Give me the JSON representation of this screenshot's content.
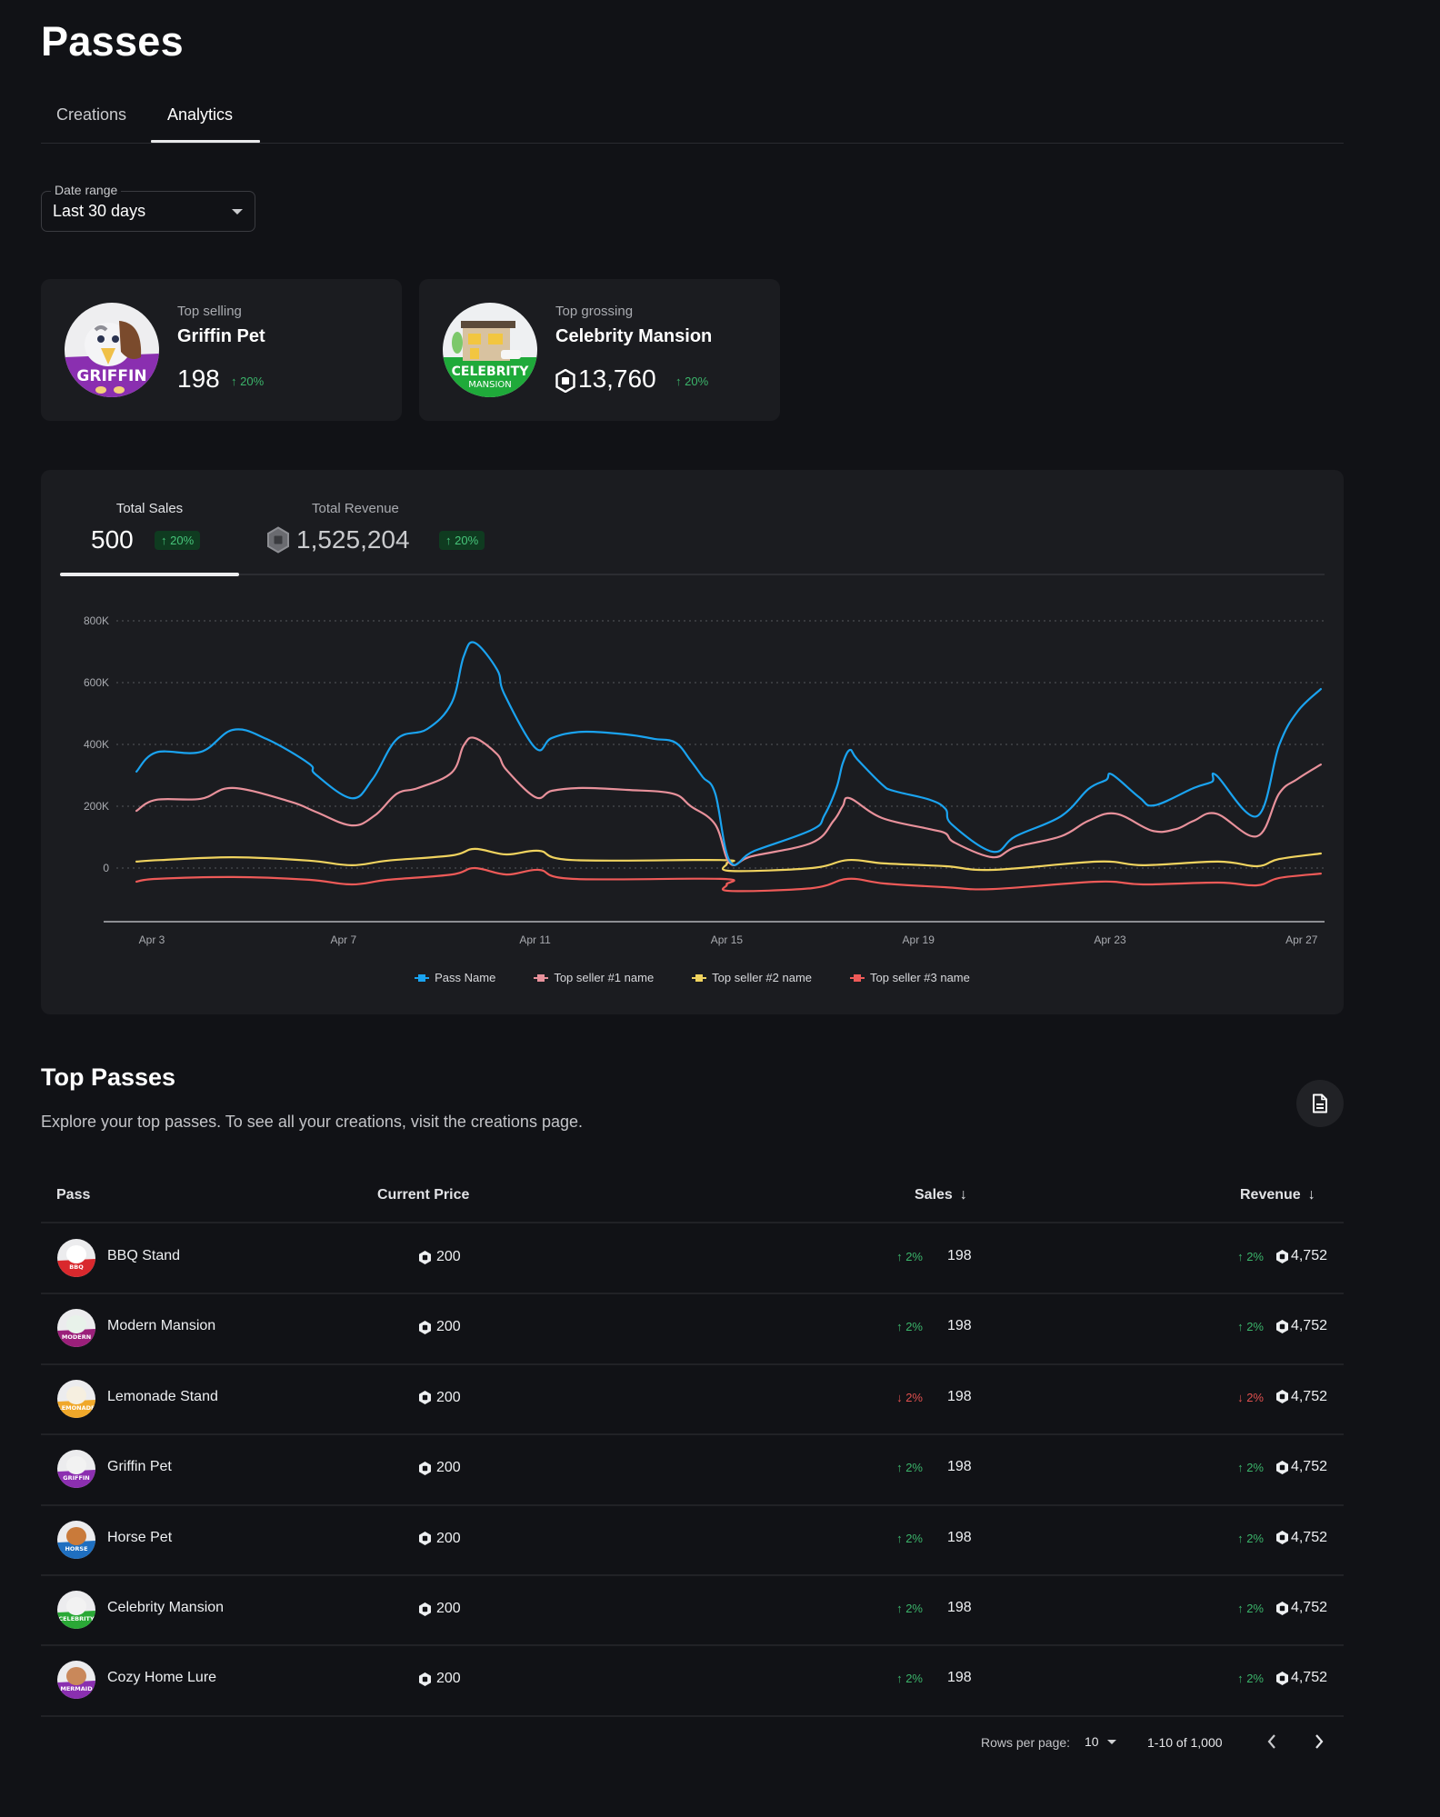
{
  "page": {
    "title": "Passes",
    "tabs": [
      {
        "label": "Creations",
        "active": false
      },
      {
        "label": "Analytics",
        "active": true
      }
    ]
  },
  "filters": {
    "date_range_label": "Date range",
    "date_range_value": "Last 30 days"
  },
  "highlights": {
    "top_selling": {
      "label": "Top selling",
      "name": "Griffin Pet",
      "value": "198",
      "delta": "20%",
      "thumb_text": "GRIFFIN"
    },
    "top_grossing": {
      "label": "Top grossing",
      "name": "Celebrity Mansion",
      "value": "13,760",
      "delta": "20%",
      "thumb_text_1": "CELEBRITY",
      "thumb_text_2": "MANSION"
    }
  },
  "metrics": {
    "total_sales": {
      "label": "Total Sales",
      "value": "500",
      "delta": "20%"
    },
    "total_revenue": {
      "label": "Total Revenue",
      "value": "1,525,204",
      "delta": "20%"
    }
  },
  "colors": {
    "pass_name": "#1aa3f0",
    "top1": "#e8919b",
    "top2": "#f0d35f",
    "top3": "#ee5a58",
    "up": "#3bb46a",
    "down": "#e0504f"
  },
  "chart_data": {
    "type": "line",
    "title": "",
    "xlabel": "",
    "ylabel": "",
    "x_unit": "day of April",
    "xlim": [
      2.68,
      27.4
    ],
    "ylim": [
      -150000,
      800000
    ],
    "grid": true,
    "y_ticks": [
      {
        "value": 800000,
        "label": "800K"
      },
      {
        "value": 600000,
        "label": "600K"
      },
      {
        "value": 400000,
        "label": "400K"
      },
      {
        "value": 200000,
        "label": "200K"
      },
      {
        "value": 0,
        "label": "0"
      }
    ],
    "x_ticks": [
      {
        "value": 3,
        "label": "Apr 3"
      },
      {
        "value": 7,
        "label": "Apr 7"
      },
      {
        "value": 11,
        "label": "Apr 11"
      },
      {
        "value": 15,
        "label": "Apr 15"
      },
      {
        "value": 19,
        "label": "Apr 19"
      },
      {
        "value": 23,
        "label": "Apr 23"
      },
      {
        "value": 27,
        "label": "Apr 27"
      }
    ],
    "legend_position": "bottom",
    "series": [
      {
        "name": "Pass Name",
        "color": "#1aa3f0",
        "points": [
          [
            2.68,
            312000
          ],
          [
            3.09,
            374000
          ],
          [
            4.02,
            376000
          ],
          [
            4.69,
            447000
          ],
          [
            5.39,
            418000
          ],
          [
            6.28,
            338000
          ],
          [
            6.42,
            303000
          ],
          [
            7.17,
            226000
          ],
          [
            7.61,
            288000
          ],
          [
            8.12,
            418000
          ],
          [
            8.75,
            450000
          ],
          [
            9.26,
            535000
          ],
          [
            9.51,
            685000
          ],
          [
            9.74,
            729000
          ],
          [
            10.21,
            641000
          ],
          [
            10.36,
            562000
          ],
          [
            11.01,
            388000
          ],
          [
            11.35,
            421000
          ],
          [
            11.98,
            441000
          ],
          [
            12.92,
            432000
          ],
          [
            13.49,
            418000
          ],
          [
            13.93,
            406000
          ],
          [
            14.25,
            347000
          ],
          [
            14.5,
            294000
          ],
          [
            14.76,
            241000
          ],
          [
            15.07,
            21000
          ],
          [
            15.58,
            56000
          ],
          [
            16.78,
            124000
          ],
          [
            17.04,
            171000
          ],
          [
            17.29,
            259000
          ],
          [
            17.42,
            338000
          ],
          [
            17.57,
            382000
          ],
          [
            17.72,
            353000
          ],
          [
            18.24,
            271000
          ],
          [
            18.48,
            250000
          ],
          [
            19.24,
            221000
          ],
          [
            19.57,
            191000
          ],
          [
            19.7,
            141000
          ],
          [
            20.55,
            53000
          ],
          [
            21.03,
            103000
          ],
          [
            21.98,
            168000
          ],
          [
            22.55,
            256000
          ],
          [
            22.92,
            285000
          ],
          [
            23.04,
            303000
          ],
          [
            23.61,
            229000
          ],
          [
            23.93,
            203000
          ],
          [
            24.75,
            259000
          ],
          [
            25.13,
            279000
          ],
          [
            25.22,
            300000
          ],
          [
            26.07,
            168000
          ],
          [
            26.53,
            397000
          ],
          [
            26.91,
            506000
          ],
          [
            27.4,
            579000
          ]
        ]
      },
      {
        "name": "Top seller #1 name",
        "color": "#e8919b",
        "points": [
          [
            2.68,
            185000
          ],
          [
            3.09,
            221000
          ],
          [
            4.02,
            224000
          ],
          [
            4.69,
            259000
          ],
          [
            5.89,
            215000
          ],
          [
            6.42,
            182000
          ],
          [
            7.17,
            138000
          ],
          [
            7.66,
            171000
          ],
          [
            8.12,
            241000
          ],
          [
            8.56,
            259000
          ],
          [
            9.26,
            309000
          ],
          [
            9.51,
            397000
          ],
          [
            9.74,
            421000
          ],
          [
            10.21,
            368000
          ],
          [
            10.4,
            318000
          ],
          [
            11.01,
            229000
          ],
          [
            11.35,
            250000
          ],
          [
            11.98,
            259000
          ],
          [
            12.92,
            253000
          ],
          [
            13.87,
            241000
          ],
          [
            14.25,
            200000
          ],
          [
            14.76,
            141000
          ],
          [
            15.07,
            15000
          ],
          [
            15.52,
            38000
          ],
          [
            16.78,
            82000
          ],
          [
            17.23,
            153000
          ],
          [
            17.42,
            200000
          ],
          [
            17.57,
            226000
          ],
          [
            18.24,
            162000
          ],
          [
            19.24,
            126000
          ],
          [
            19.57,
            112000
          ],
          [
            19.76,
            82000
          ],
          [
            20.55,
            35000
          ],
          [
            21.03,
            68000
          ],
          [
            21.98,
            103000
          ],
          [
            22.55,
            153000
          ],
          [
            23.12,
            176000
          ],
          [
            23.88,
            121000
          ],
          [
            24.37,
            126000
          ],
          [
            24.75,
            153000
          ],
          [
            25.22,
            176000
          ],
          [
            26.07,
            103000
          ],
          [
            26.53,
            241000
          ],
          [
            26.91,
            288000
          ],
          [
            27.4,
            335000
          ]
        ]
      },
      {
        "name": "Top seller #2 name",
        "color": "#f0d35f",
        "points": [
          [
            2.68,
            21000
          ],
          [
            3.19,
            26000
          ],
          [
            4.71,
            35000
          ],
          [
            6.28,
            24000
          ],
          [
            7.17,
            9000
          ],
          [
            7.93,
            24000
          ],
          [
            9.26,
            41000
          ],
          [
            9.74,
            62000
          ],
          [
            10.4,
            44000
          ],
          [
            11.08,
            56000
          ],
          [
            11.78,
            26000
          ],
          [
            14.87,
            26000
          ],
          [
            15.0,
            15000
          ],
          [
            15.07,
            -9000
          ],
          [
            16.78,
            0
          ],
          [
            17.53,
            26000
          ],
          [
            18.29,
            15000
          ],
          [
            19.57,
            6000
          ],
          [
            20.55,
            -6000
          ],
          [
            22.74,
            21000
          ],
          [
            23.69,
            9000
          ],
          [
            25.26,
            21000
          ],
          [
            26.07,
            6000
          ],
          [
            26.53,
            29000
          ],
          [
            27.4,
            47000
          ]
        ]
      },
      {
        "name": "Top seller #3 name",
        "color": "#ee5a58",
        "points": [
          [
            2.68,
            -44000
          ],
          [
            3.11,
            -35000
          ],
          [
            4.71,
            -29000
          ],
          [
            6.28,
            -38000
          ],
          [
            7.17,
            -53000
          ],
          [
            7.93,
            -38000
          ],
          [
            9.26,
            -21000
          ],
          [
            9.74,
            0
          ],
          [
            10.4,
            -21000
          ],
          [
            11.08,
            -6000
          ],
          [
            11.78,
            -35000
          ],
          [
            14.87,
            -35000
          ],
          [
            15.0,
            -53000
          ],
          [
            15.07,
            -74000
          ],
          [
            16.78,
            -65000
          ],
          [
            17.53,
            -35000
          ],
          [
            18.29,
            -50000
          ],
          [
            19.57,
            -62000
          ],
          [
            20.55,
            -68000
          ],
          [
            22.74,
            -44000
          ],
          [
            23.69,
            -53000
          ],
          [
            25.26,
            -47000
          ],
          [
            26.07,
            -56000
          ],
          [
            26.53,
            -32000
          ],
          [
            27.4,
            -18000
          ]
        ]
      }
    ]
  },
  "top_passes": {
    "title": "Top Passes",
    "subtitle": "Explore your top passes. To see all your creations, visit the creations page.",
    "export_icon": "document-icon",
    "columns": {
      "pass": "Pass",
      "price": "Current Price",
      "sales": "Sales",
      "revenue": "Revenue"
    },
    "rows": [
      {
        "name": "BBQ Stand",
        "price": "200",
        "sales_delta": "2%",
        "sales_dir": "up",
        "sales": "198",
        "revenue_delta": "2%",
        "revenue_dir": "up",
        "revenue": "4,752",
        "thumb": "BBQ",
        "thumb_bg": "#d9282d",
        "thumb_accent": "#ffffff"
      },
      {
        "name": "Modern Mansion",
        "price": "200",
        "sales_delta": "2%",
        "sales_dir": "up",
        "sales": "198",
        "revenue_delta": "2%",
        "revenue_dir": "up",
        "revenue": "4,752",
        "thumb": "MODERN",
        "thumb_bg": "#9b1f7a",
        "thumb_accent": "#e8f2ea"
      },
      {
        "name": "Lemonade Stand",
        "price": "200",
        "sales_delta": "2%",
        "sales_dir": "down",
        "sales": "198",
        "revenue_delta": "2%",
        "revenue_dir": "down",
        "revenue": "4,752",
        "thumb": "LEMONADE",
        "thumb_bg": "#f0a82a",
        "thumb_accent": "#f6efe0"
      },
      {
        "name": "Griffin Pet",
        "price": "200",
        "sales_delta": "2%",
        "sales_dir": "up",
        "sales": "198",
        "revenue_delta": "2%",
        "revenue_dir": "up",
        "revenue": "4,752",
        "thumb": "GRIFFIN",
        "thumb_bg": "#8c2fb0",
        "thumb_accent": "#f2f2f2"
      },
      {
        "name": "Horse Pet",
        "price": "200",
        "sales_delta": "2%",
        "sales_dir": "up",
        "sales": "198",
        "revenue_delta": "2%",
        "revenue_dir": "up",
        "revenue": "4,752",
        "thumb": "HORSE",
        "thumb_bg": "#1f6fc0",
        "thumb_accent": "#c97a3a"
      },
      {
        "name": "Celebrity Mansion",
        "price": "200",
        "sales_delta": "2%",
        "sales_dir": "up",
        "sales": "198",
        "revenue_delta": "2%",
        "revenue_dir": "up",
        "revenue": "4,752",
        "thumb": "CELEBRITY",
        "thumb_bg": "#2aa836",
        "thumb_accent": "#f2f2f2"
      },
      {
        "name": "Cozy Home Lure",
        "price": "200",
        "sales_delta": "2%",
        "sales_dir": "up",
        "sales": "198",
        "revenue_delta": "2%",
        "revenue_dir": "up",
        "revenue": "4,752",
        "thumb": "MERMAID",
        "thumb_bg": "#8a2fb0",
        "thumb_accent": "#c9885a"
      }
    ],
    "pagination": {
      "rows_per_page_label": "Rows per page:",
      "rows_per_page_value": "10",
      "range_text": "1-10 of 1,000"
    }
  }
}
